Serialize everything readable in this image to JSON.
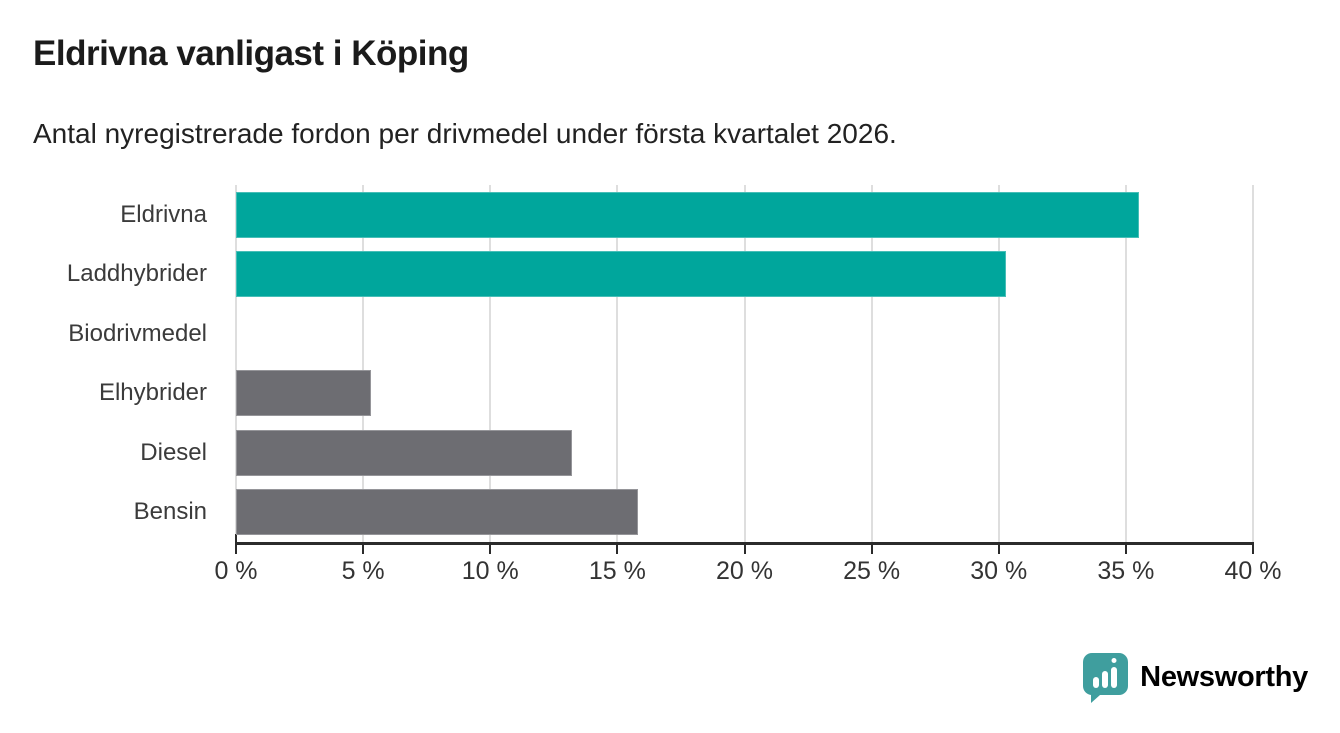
{
  "header": {
    "title": "Eldrivna vanligast i Köping",
    "subtitle": "Antal nyregistrerade fordon per drivmedel under första kvartalet 2026."
  },
  "chart_data": {
    "type": "bar",
    "orientation": "horizontal",
    "title": "Eldrivna vanligast i Köping",
    "subtitle": "Antal nyregistrerade fordon per drivmedel under första kvartalet 2026.",
    "categories": [
      "Eldrivna",
      "Laddhybrider",
      "Biodrivmedel",
      "Elhybrider",
      "Diesel",
      "Bensin"
    ],
    "values": [
      35.5,
      30.3,
      0,
      5.3,
      13.2,
      15.8
    ],
    "value_unit": "%",
    "xlim": [
      0,
      40
    ],
    "ticks": [
      0,
      5,
      10,
      15,
      20,
      25,
      30,
      35,
      40
    ],
    "tick_labels": [
      "0 %",
      "5 %",
      "10 %",
      "15 %",
      "20 %",
      "25 %",
      "30 %",
      "35 %",
      "40 %"
    ],
    "grid": true,
    "legend": "none",
    "bar_colors": [
      "#00a69c",
      "#00a69c",
      "#6d6d72",
      "#6d6d72",
      "#6d6d72",
      "#6d6d72"
    ]
  },
  "colors": {
    "accent_teal": "#00a69c",
    "bar_gray": "#6d6d72",
    "axis": "#2b2b2b",
    "gridline": "#dedede",
    "logo_teal": "#3f9e9e"
  },
  "branding": {
    "logo_text": "Newsworthy"
  }
}
